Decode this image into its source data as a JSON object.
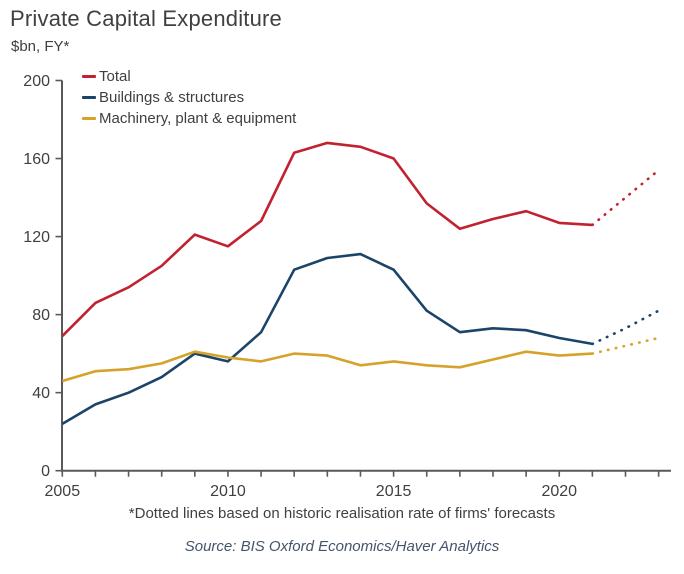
{
  "title": "Private Capital Expenditure",
  "subtitle": "$bn, FY*",
  "footnote": "*Dotted lines based on historic realisation rate of firms' forecasts",
  "source": "Source: BIS Oxford Economics/Haver Analytics",
  "colors": {
    "total": "#c2212f",
    "buildings": "#1b4468",
    "machinery": "#d6a32a",
    "axis": "#595959",
    "text": "#404040"
  },
  "chart_data": {
    "type": "line",
    "title": "Private Capital Expenditure",
    "ylabel": "$bn, FY*",
    "xlabel": "",
    "grid": false,
    "legend_position": "top-left",
    "ylim": [
      0,
      200
    ],
    "yticks": [
      0,
      40,
      80,
      120,
      160,
      200
    ],
    "xticks": [
      2005,
      2006,
      2007,
      2008,
      2009,
      2010,
      2011,
      2012,
      2013,
      2014,
      2015,
      2016,
      2017,
      2018,
      2019,
      2020,
      2021,
      2022,
      2023
    ],
    "xtick_labels": [
      2005,
      2010,
      2015,
      2020
    ],
    "x": [
      2005,
      2006,
      2007,
      2008,
      2009,
      2010,
      2011,
      2012,
      2013,
      2014,
      2015,
      2016,
      2017,
      2018,
      2019,
      2020,
      2021
    ],
    "forecast_x": [
      2021,
      2022,
      2023
    ],
    "series": [
      {
        "name": "Total",
        "color_key": "total",
        "values": [
          69,
          86,
          94,
          105,
          121,
          115,
          128,
          163,
          168,
          166,
          160,
          137,
          124,
          129,
          133,
          127,
          126
        ],
        "forecast_values": [
          126,
          140,
          154
        ]
      },
      {
        "name": "Buildings & structures",
        "color_key": "buildings",
        "values": [
          24,
          34,
          40,
          48,
          60,
          56,
          71,
          103,
          109,
          111,
          103,
          82,
          71,
          73,
          72,
          68,
          65
        ],
        "forecast_values": [
          65,
          73,
          82
        ]
      },
      {
        "name": "Machinery, plant & equipment",
        "color_key": "machinery",
        "values": [
          46,
          51,
          52,
          55,
          61,
          58,
          56,
          60,
          59,
          54,
          56,
          54,
          53,
          57,
          61,
          59,
          60
        ],
        "forecast_values": [
          60,
          64,
          68
        ]
      }
    ]
  }
}
